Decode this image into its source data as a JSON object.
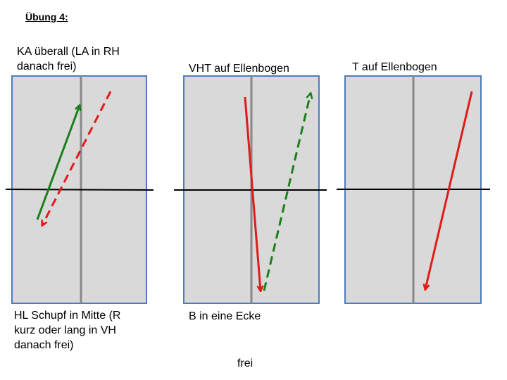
{
  "title": "Übung 4:",
  "diagrams": [
    {
      "top_label": "KA überall (LA in RH\ndanach frei)",
      "bottom_label": "HL Schupf in Mitte (R\nkurz oder lang in VH\ndanach frei)",
      "arrows": [
        {
          "color": "#1a7f1a",
          "style": "solid"
        },
        {
          "color": "#e11b1b",
          "style": "dashed"
        }
      ]
    },
    {
      "top_label": "VHT auf Ellenbogen",
      "bottom_label": "B in eine Ecke",
      "arrows": [
        {
          "color": "#e11b1b",
          "style": "solid"
        },
        {
          "color": "#1a7f1a",
          "style": "dashed"
        }
      ]
    },
    {
      "top_label": "T auf Ellenbogen",
      "bottom_label": "",
      "arrows": [
        {
          "color": "#e11b1b",
          "style": "solid"
        }
      ]
    }
  ],
  "footer": "frei",
  "colors": {
    "table_fill": "#d9d9d9",
    "table_border": "#4f7cba",
    "center_line": "#888888",
    "net_line": "#000000"
  }
}
